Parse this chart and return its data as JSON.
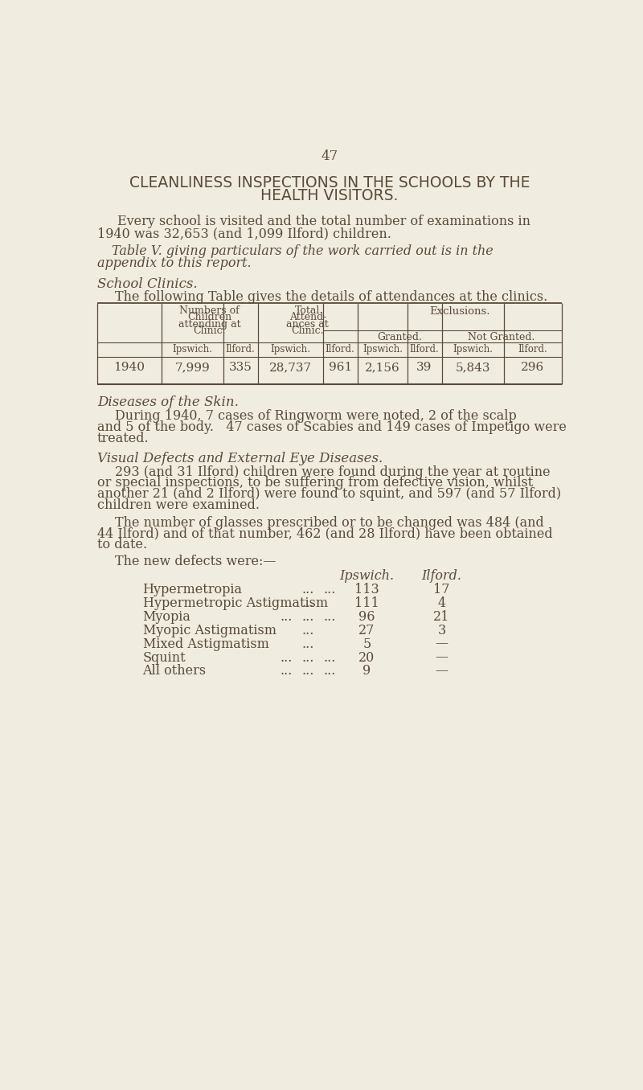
{
  "bg_color": "#f0ede0",
  "text_color": "#5a4a3a",
  "page_number": "47",
  "title_line1": "CLEANLINESS INSPECTIONS IN THE SCHOOLS BY THE",
  "title_line2": "HEALTH VISITORS.",
  "para1a": "Every school is visited and the total number of examinations in",
  "para1b": "1940 was 32,653 (and 1,099 Ilford) children.",
  "para2a": "Table V. giving particulars of the work carried out is in the",
  "para2b": "appendix to this report.",
  "section1_heading": "School Clinics.",
  "section1_intro": "The following Table gives the details of attendances at the clinics.",
  "table_data": [
    "7,999",
    "335",
    "28,737",
    "961",
    "2,156",
    "39",
    "5,843",
    "296"
  ],
  "section2_heading": "Diseases of the Skin.",
  "section2_para1": "During 1940, 7 cases of Ringworm were noted, 2 of the scalp",
  "section2_para2": "and 5 of the body.   47 cases of Scabies and 149 cases of Impetigo were",
  "section2_para3": "treated.",
  "section3_heading": "Visual Defects and External Eye Diseases.",
  "section3_para1a": "293 (and 31 Ilford) children were found during the year at routine",
  "section3_para1b": "or special inspections, to be suffering from defective vision, whilst",
  "section3_para1c": "another 21 (and 2 Ilford) were found to squint, and 597 (and 57 Ilford)",
  "section3_para1d": "children were examined.",
  "section3_para2a": "The number of glasses prescribed or to be changed was 484 (and",
  "section3_para2b": "44 Ilford) and of that number, 462 (and 28 Ilford) have been obtained",
  "section3_para2c": "to date.",
  "defects_intro": "The new defects were:—",
  "defects_col1": "Ipswich.",
  "defects_col2": "Ilford.",
  "defect_names": [
    "Hypermetropia",
    "Hypermetropic Astigmatism",
    "Myopia",
    "Myopic Astigmatism",
    "Mixed Astigmatism",
    "Squint",
    "All others"
  ],
  "defect_dots1": [
    "...",
    "...",
    "...",
    "...",
    "...",
    "...",
    "..."
  ],
  "defect_dots2": [
    "...",
    "",
    "...",
    "",
    "",
    "...",
    "..."
  ],
  "defect_dots3": [
    "",
    "",
    "...",
    "",
    "",
    "...",
    "..."
  ],
  "defect_ipswich": [
    "113",
    "111",
    "96",
    "27",
    "5",
    "20",
    "9"
  ],
  "defect_ilford": [
    "17",
    "4",
    "21",
    "3",
    "—",
    "—",
    "—"
  ]
}
